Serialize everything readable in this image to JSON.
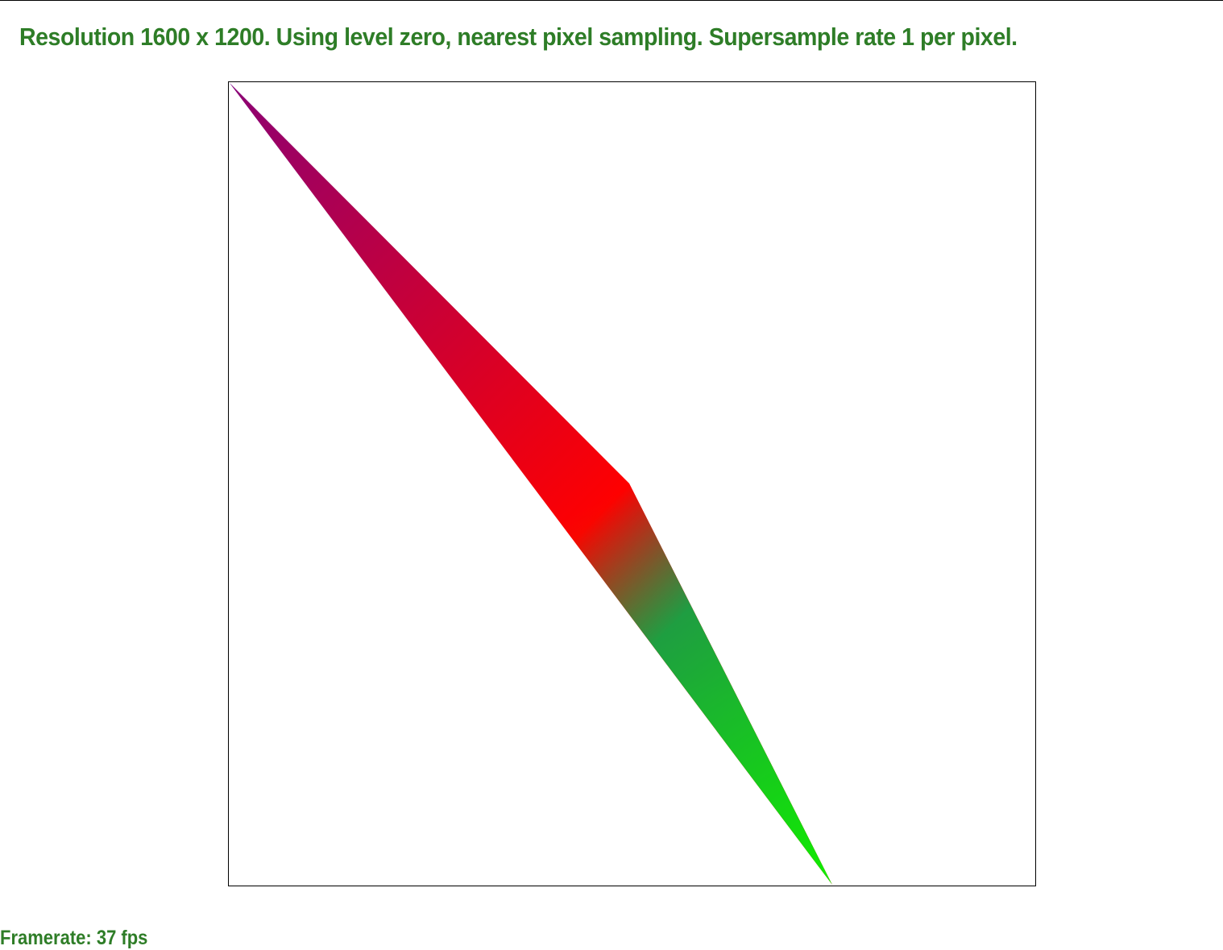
{
  "status": {
    "message": "Resolution 1600 x 1200. Using level zero, nearest pixel sampling. Supersample rate 1 per pixel."
  },
  "footer": {
    "framerate": "Framerate: 37 fps"
  },
  "colors": {
    "text": "#2e7d27",
    "vertex_a": "#0000ff",
    "vertex_b": "#ff0000",
    "vertex_c": "#00ff00"
  }
}
